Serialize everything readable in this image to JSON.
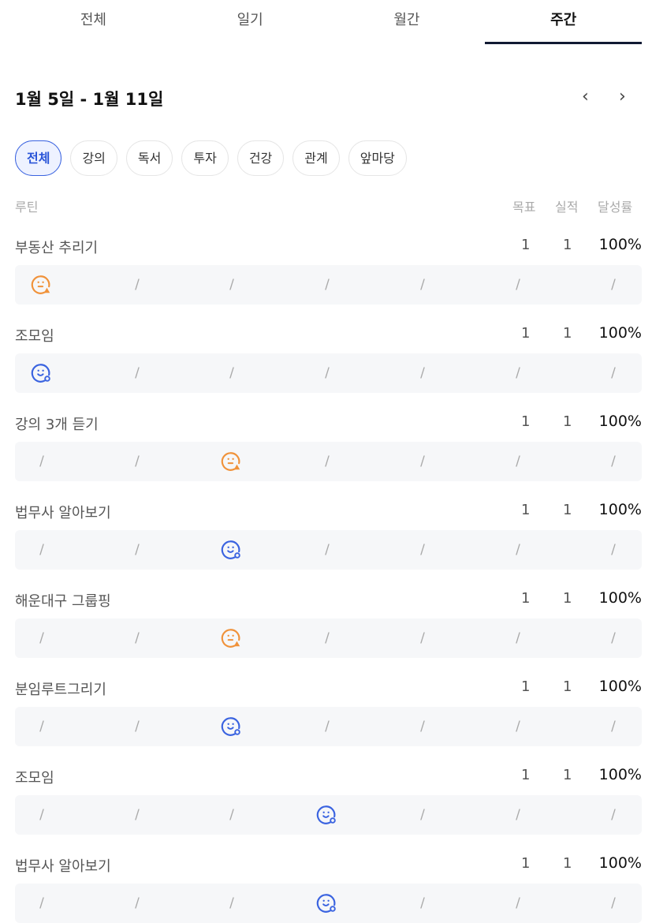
{
  "tabs": [
    {
      "label": "전체"
    },
    {
      "label": "일기"
    },
    {
      "label": "월간"
    },
    {
      "label": "주간",
      "active": true
    }
  ],
  "title": "1월 5일 - 1월 11일",
  "chips": [
    {
      "label": "전체",
      "active": true
    },
    {
      "label": "강의"
    },
    {
      "label": "독서"
    },
    {
      "label": "투자"
    },
    {
      "label": "건강"
    },
    {
      "label": "관계"
    },
    {
      "label": "앞마당"
    }
  ],
  "header": {
    "routine": "루틴",
    "goal": "목표",
    "actual": "실적",
    "rate": "달성률"
  },
  "colors": {
    "orange": "#f0923a",
    "blue": "#3a63e0"
  },
  "empty_mark": "/",
  "rows": [
    {
      "name": "부동산 추리기",
      "goal": "1",
      "actual": "1",
      "rate": "100%",
      "days": [
        "warning",
        "",
        "",
        "",
        "",
        "",
        ""
      ]
    },
    {
      "name": "조모임",
      "goal": "1",
      "actual": "1",
      "rate": "100%",
      "days": [
        "done",
        "",
        "",
        "",
        "",
        "",
        ""
      ]
    },
    {
      "name": "강의 3개 듣기",
      "goal": "1",
      "actual": "1",
      "rate": "100%",
      "days": [
        "",
        "",
        "warning",
        "",
        "",
        "",
        ""
      ]
    },
    {
      "name": "법무사 알아보기",
      "goal": "1",
      "actual": "1",
      "rate": "100%",
      "days": [
        "",
        "",
        "done",
        "",
        "",
        "",
        ""
      ]
    },
    {
      "name": "해운대구 그룹핑",
      "goal": "1",
      "actual": "1",
      "rate": "100%",
      "days": [
        "",
        "",
        "warning",
        "",
        "",
        "",
        ""
      ]
    },
    {
      "name": "분임루트그리기",
      "goal": "1",
      "actual": "1",
      "rate": "100%",
      "days": [
        "",
        "",
        "done",
        "",
        "",
        "",
        ""
      ]
    },
    {
      "name": "조모임",
      "goal": "1",
      "actual": "1",
      "rate": "100%",
      "days": [
        "",
        "",
        "",
        "done",
        "",
        "",
        ""
      ]
    },
    {
      "name": "법무사 알아보기",
      "goal": "1",
      "actual": "1",
      "rate": "100%",
      "days": [
        "",
        "",
        "",
        "done",
        "",
        "",
        ""
      ]
    }
  ]
}
